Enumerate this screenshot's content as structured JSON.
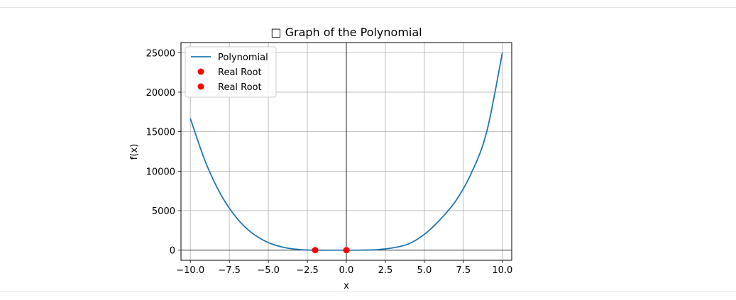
{
  "chart_data": {
    "type": "line",
    "title": "□ Graph of the Polynomial",
    "xlabel": "x",
    "ylabel": "f(x)",
    "xlim": [
      -10.6,
      10.6
    ],
    "ylim": [
      -1280,
      26280
    ],
    "xticks": [
      -10.0,
      -7.5,
      -5.0,
      -2.5,
      0.0,
      2.5,
      5.0,
      7.5,
      10.0
    ],
    "xtick_labels": [
      "−10.0",
      "−7.5",
      "−5.0",
      "−2.5",
      "0.0",
      "2.5",
      "5.0",
      "7.5",
      "10.0"
    ],
    "yticks": [
      0,
      5000,
      10000,
      15000,
      20000,
      25000
    ],
    "ytick_labels": [
      "0",
      "5000",
      "10000",
      "15000",
      "20000",
      "25000"
    ],
    "grid": true,
    "legend": "upper-left",
    "series": [
      {
        "name": "Polynomial",
        "kind": "line",
        "color": "#1f77b4",
        "x": [
          -10,
          -9,
          -8,
          -7,
          -6,
          -5,
          -4,
          -3,
          -2,
          -1,
          0,
          1,
          2,
          3,
          4,
          5,
          6,
          7,
          8,
          9,
          10
        ],
        "y": [
          16670,
          11010,
          6880,
          4000,
          2100,
          960,
          350,
          80,
          0,
          0,
          0,
          10,
          70,
          300,
          800,
          2000,
          3850,
          6200,
          9700,
          15000,
          25000
        ]
      },
      {
        "name": "Real Root",
        "kind": "scatter",
        "color": "#ff0000",
        "x": [
          -2
        ],
        "y": [
          0
        ]
      },
      {
        "name": "Real Root",
        "kind": "scatter",
        "color": "#ff0000",
        "x": [
          0
        ],
        "y": [
          0
        ]
      }
    ]
  }
}
